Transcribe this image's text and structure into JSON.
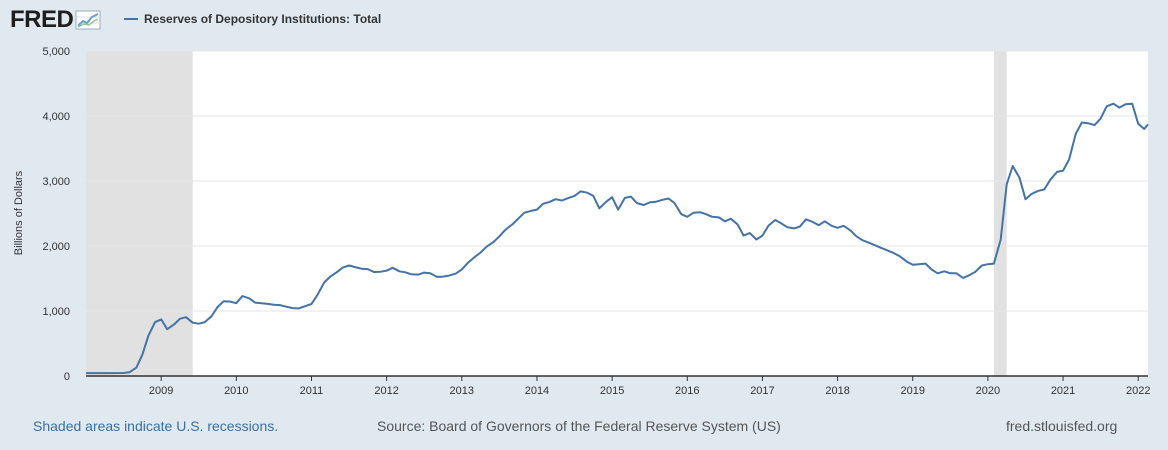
{
  "header": {
    "logo_text": "FRED",
    "logo_icon": "line-graph-icon"
  },
  "colors": {
    "background": "#e1e9f0",
    "plot_background": "#ffffff",
    "series_line": "#4572a7",
    "recession_shade": "#e1e1e1",
    "grid": "#e6e6e6",
    "recession_note_link": "#3a6fa3"
  },
  "footer": {
    "recession_note": "Shaded areas indicate U.S. recessions.",
    "source": "Source: Board of Governors of the Federal Reserve System (US)",
    "site": "fred.stlouisfed.org"
  },
  "chart_data": {
    "type": "line",
    "title": "",
    "ylabel": "Billions of Dollars",
    "xlabel": "",
    "xlim": [
      2008.0,
      2022.13
    ],
    "ylim": [
      0,
      5000
    ],
    "y_ticks": [
      0,
      1000,
      2000,
      3000,
      4000,
      5000
    ],
    "y_tick_labels": [
      "0",
      "1,000",
      "2,000",
      "3,000",
      "4,000",
      "5,000"
    ],
    "x_ticks": [
      2009,
      2010,
      2011,
      2012,
      2013,
      2014,
      2015,
      2016,
      2017,
      2018,
      2019,
      2020,
      2021,
      2022
    ],
    "grid": true,
    "legend_position": "top-left",
    "recessions": [
      {
        "start": 2008.0,
        "end": 2009.42
      },
      {
        "start": 2020.08,
        "end": 2020.25
      }
    ],
    "series": [
      {
        "name": "Reserves of Depository Institutions: Total",
        "points": [
          [
            2008.0,
            45
          ],
          [
            2008.25,
            44
          ],
          [
            2008.5,
            46
          ],
          [
            2008.58,
            58
          ],
          [
            2008.67,
            130
          ],
          [
            2008.75,
            330
          ],
          [
            2008.83,
            620
          ],
          [
            2008.92,
            830
          ],
          [
            2009.0,
            870
          ],
          [
            2009.08,
            720
          ],
          [
            2009.17,
            790
          ],
          [
            2009.25,
            880
          ],
          [
            2009.33,
            905
          ],
          [
            2009.42,
            820
          ],
          [
            2009.5,
            805
          ],
          [
            2009.58,
            830
          ],
          [
            2009.67,
            920
          ],
          [
            2009.75,
            1060
          ],
          [
            2009.83,
            1150
          ],
          [
            2009.92,
            1145
          ],
          [
            2010.0,
            1120
          ],
          [
            2010.08,
            1230
          ],
          [
            2010.17,
            1195
          ],
          [
            2010.25,
            1130
          ],
          [
            2010.42,
            1110
          ],
          [
            2010.5,
            1095
          ],
          [
            2010.58,
            1090
          ],
          [
            2010.67,
            1065
          ],
          [
            2010.75,
            1045
          ],
          [
            2010.83,
            1040
          ],
          [
            2010.92,
            1075
          ],
          [
            2011.0,
            1110
          ],
          [
            2011.08,
            1250
          ],
          [
            2011.17,
            1440
          ],
          [
            2011.25,
            1530
          ],
          [
            2011.33,
            1590
          ],
          [
            2011.42,
            1670
          ],
          [
            2011.5,
            1700
          ],
          [
            2011.58,
            1675
          ],
          [
            2011.67,
            1650
          ],
          [
            2011.75,
            1645
          ],
          [
            2011.83,
            1600
          ],
          [
            2011.92,
            1605
          ],
          [
            2012.0,
            1620
          ],
          [
            2012.08,
            1665
          ],
          [
            2012.17,
            1610
          ],
          [
            2012.25,
            1595
          ],
          [
            2012.33,
            1565
          ],
          [
            2012.42,
            1560
          ],
          [
            2012.5,
            1590
          ],
          [
            2012.58,
            1580
          ],
          [
            2012.67,
            1525
          ],
          [
            2012.75,
            1530
          ],
          [
            2012.83,
            1545
          ],
          [
            2012.92,
            1575
          ],
          [
            2013.0,
            1640
          ],
          [
            2013.08,
            1740
          ],
          [
            2013.17,
            1830
          ],
          [
            2013.25,
            1900
          ],
          [
            2013.33,
            1990
          ],
          [
            2013.42,
            2060
          ],
          [
            2013.5,
            2150
          ],
          [
            2013.58,
            2250
          ],
          [
            2013.67,
            2330
          ],
          [
            2013.75,
            2420
          ],
          [
            2013.83,
            2510
          ],
          [
            2013.92,
            2540
          ],
          [
            2014.0,
            2560
          ],
          [
            2014.08,
            2650
          ],
          [
            2014.17,
            2680
          ],
          [
            2014.25,
            2720
          ],
          [
            2014.33,
            2700
          ],
          [
            2014.42,
            2740
          ],
          [
            2014.5,
            2770
          ],
          [
            2014.58,
            2840
          ],
          [
            2014.67,
            2820
          ],
          [
            2014.75,
            2770
          ],
          [
            2014.83,
            2580
          ],
          [
            2014.92,
            2680
          ],
          [
            2015.0,
            2750
          ],
          [
            2015.08,
            2560
          ],
          [
            2015.17,
            2740
          ],
          [
            2015.25,
            2760
          ],
          [
            2015.33,
            2660
          ],
          [
            2015.42,
            2630
          ],
          [
            2015.5,
            2670
          ],
          [
            2015.58,
            2680
          ],
          [
            2015.67,
            2710
          ],
          [
            2015.75,
            2730
          ],
          [
            2015.83,
            2660
          ],
          [
            2015.92,
            2490
          ],
          [
            2016.0,
            2450
          ],
          [
            2016.08,
            2510
          ],
          [
            2016.17,
            2520
          ],
          [
            2016.25,
            2490
          ],
          [
            2016.33,
            2450
          ],
          [
            2016.42,
            2440
          ],
          [
            2016.5,
            2380
          ],
          [
            2016.58,
            2420
          ],
          [
            2016.67,
            2330
          ],
          [
            2016.75,
            2160
          ],
          [
            2016.83,
            2200
          ],
          [
            2016.92,
            2100
          ],
          [
            2017.0,
            2160
          ],
          [
            2017.08,
            2310
          ],
          [
            2017.17,
            2400
          ],
          [
            2017.25,
            2350
          ],
          [
            2017.33,
            2290
          ],
          [
            2017.42,
            2270
          ],
          [
            2017.5,
            2300
          ],
          [
            2017.58,
            2410
          ],
          [
            2017.67,
            2370
          ],
          [
            2017.75,
            2320
          ],
          [
            2017.83,
            2380
          ],
          [
            2017.92,
            2310
          ],
          [
            2018.0,
            2280
          ],
          [
            2018.08,
            2310
          ],
          [
            2018.17,
            2240
          ],
          [
            2018.25,
            2150
          ],
          [
            2018.33,
            2090
          ],
          [
            2018.42,
            2050
          ],
          [
            2018.5,
            2010
          ],
          [
            2018.58,
            1970
          ],
          [
            2018.67,
            1930
          ],
          [
            2018.75,
            1890
          ],
          [
            2018.83,
            1840
          ],
          [
            2018.92,
            1760
          ],
          [
            2019.0,
            1710
          ],
          [
            2019.08,
            1720
          ],
          [
            2019.17,
            1730
          ],
          [
            2019.25,
            1640
          ],
          [
            2019.33,
            1580
          ],
          [
            2019.42,
            1610
          ],
          [
            2019.5,
            1580
          ],
          [
            2019.58,
            1580
          ],
          [
            2019.67,
            1510
          ],
          [
            2019.75,
            1550
          ],
          [
            2019.83,
            1600
          ],
          [
            2019.92,
            1700
          ],
          [
            2020.0,
            1720
          ],
          [
            2020.08,
            1730
          ],
          [
            2020.17,
            2100
          ],
          [
            2020.25,
            2950
          ],
          [
            2020.33,
            3230
          ],
          [
            2020.42,
            3050
          ],
          [
            2020.5,
            2720
          ],
          [
            2020.58,
            2800
          ],
          [
            2020.67,
            2850
          ],
          [
            2020.75,
            2870
          ],
          [
            2020.83,
            3020
          ],
          [
            2020.92,
            3140
          ],
          [
            2021.0,
            3160
          ],
          [
            2021.08,
            3330
          ],
          [
            2021.17,
            3730
          ],
          [
            2021.25,
            3900
          ],
          [
            2021.33,
            3890
          ],
          [
            2021.42,
            3860
          ],
          [
            2021.5,
            3960
          ],
          [
            2021.58,
            4150
          ],
          [
            2021.67,
            4190
          ],
          [
            2021.75,
            4130
          ],
          [
            2021.83,
            4180
          ],
          [
            2021.92,
            4190
          ],
          [
            2022.0,
            3880
          ],
          [
            2022.08,
            3800
          ],
          [
            2022.13,
            3870
          ]
        ]
      }
    ]
  }
}
